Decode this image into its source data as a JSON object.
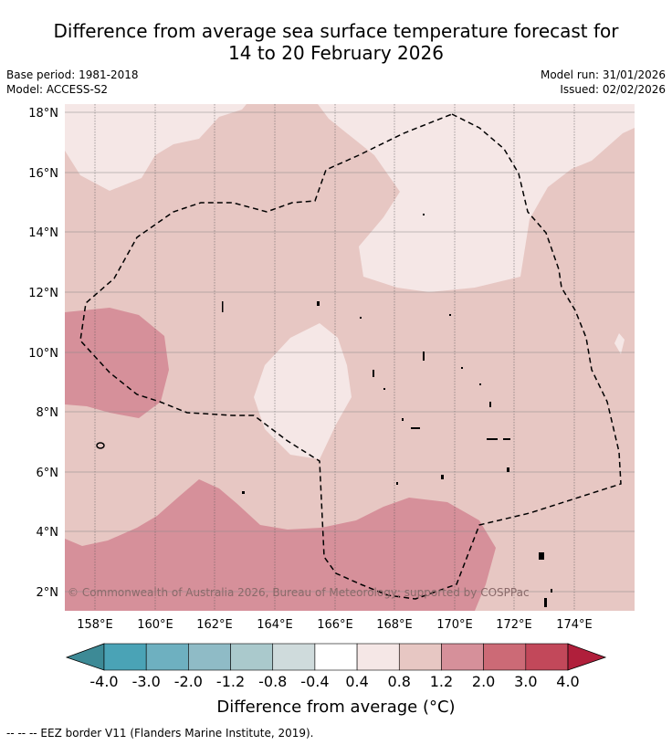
{
  "title_line1": "Difference from average sea surface temperature forecast for",
  "title_line2": "14 to 20 February 2026",
  "base_period": "Base period: 1981-2018",
  "model": "Model: ACCESS-S2",
  "model_run": "Model run: 31/01/2026",
  "issued": "Issued: 02/02/2026",
  "copyright": "© Commonwealth of Australia 2026, Bureau of Meteorology; supported by COSPPac",
  "lat_labels": [
    "18°N",
    "16°N",
    "14°N",
    "12°N",
    "10°N",
    "8°N",
    "6°N",
    "4°N",
    "2°N"
  ],
  "lon_labels": [
    "158°E",
    "160°E",
    "162°E",
    "164°E",
    "166°E",
    "168°E",
    "170°E",
    "172°E",
    "174°E"
  ],
  "colorbar": {
    "ticks": [
      "-4.0",
      "-3.0",
      "-2.0",
      "-1.2",
      "-0.8",
      "-0.4",
      "0.4",
      "0.8",
      "1.2",
      "2.0",
      "3.0",
      "4.0"
    ],
    "colors": [
      "#3d8a96",
      "#4aa3b6",
      "#6eb0c0",
      "#8fbbc6",
      "#aac9cc",
      "#cfdbdc",
      "#ffffff",
      "#f5e7e6",
      "#e7c7c3",
      "#d6909a",
      "#cc6a76",
      "#c2485a",
      "#b01f3b"
    ],
    "label": "Difference from average (°C)"
  },
  "footer": "-- -- -- EEZ border V11 (Flanders Marine Institute, 2019)."
}
